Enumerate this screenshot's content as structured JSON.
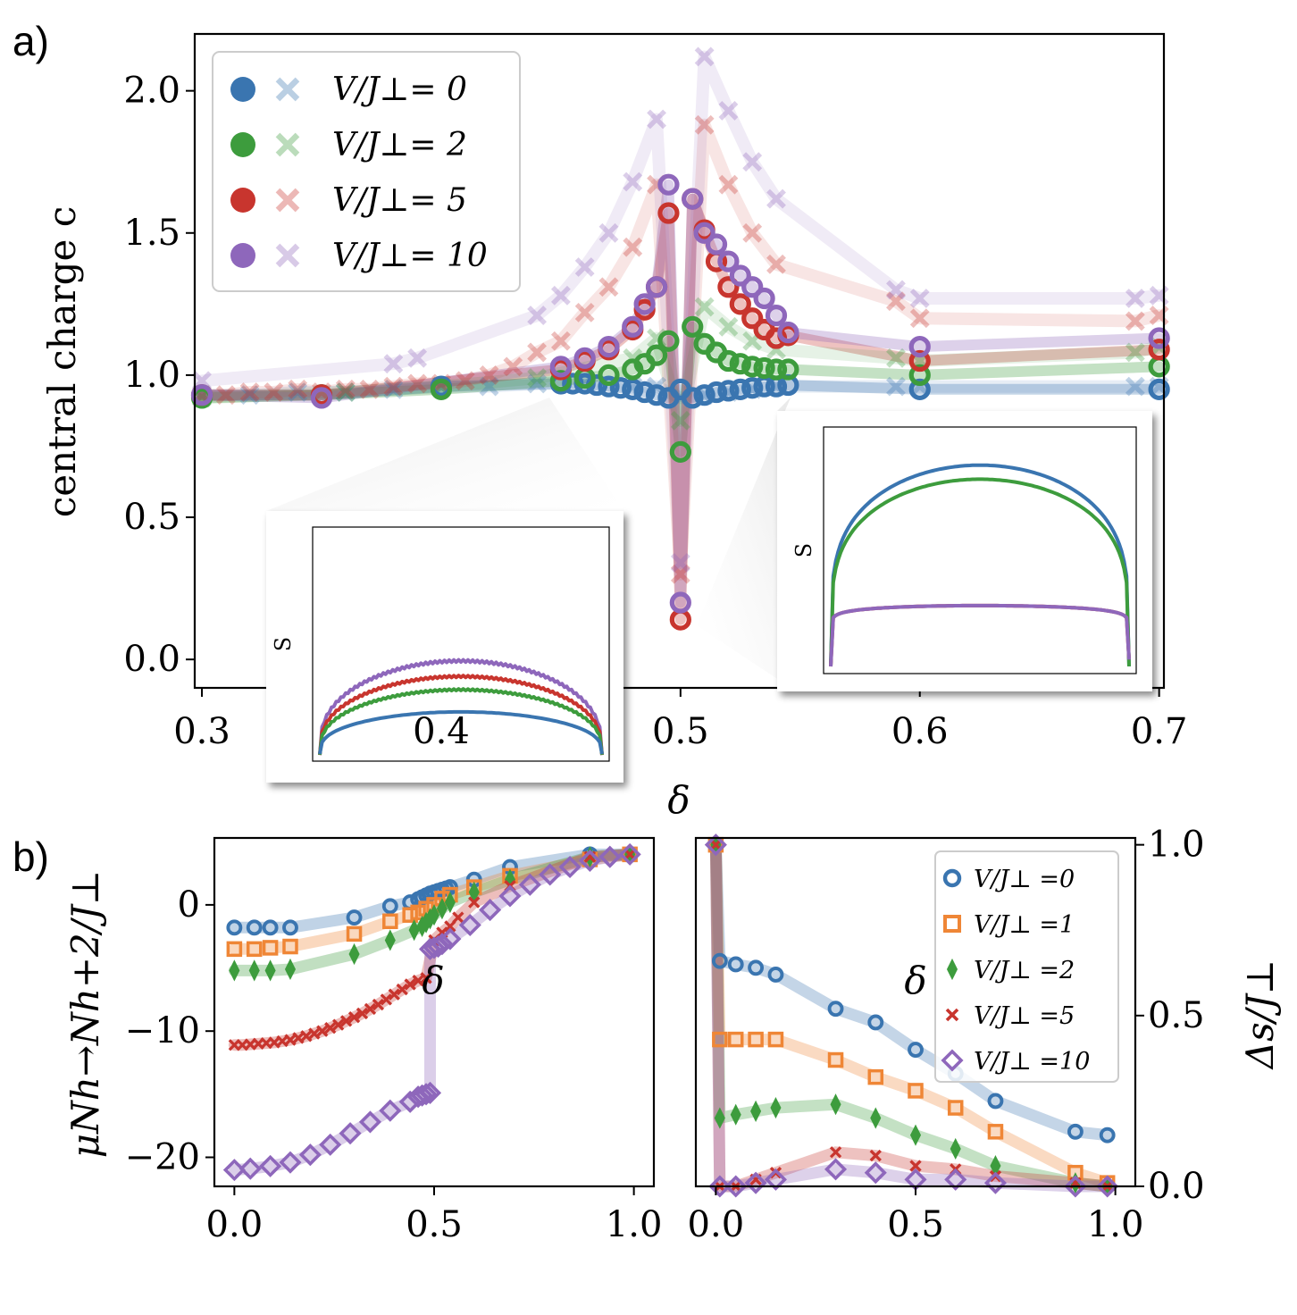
{
  "colors": {
    "blue": "#3a75b0",
    "orange": "#ef8636",
    "green": "#3d9c3d",
    "red": "#c8352e",
    "purple": "#8e67bb"
  },
  "chart_data": [
    {
      "id": "a",
      "panel_label": "a)",
      "type": "scatter",
      "xlabel": "δ",
      "ylabel": "central charge c",
      "xlim": [
        0.297,
        0.702
      ],
      "ylim": [
        -0.1,
        2.2
      ],
      "xticks": [
        {
          "v": 0.3,
          "label": "0.3"
        },
        {
          "v": 0.4,
          "label": "0.4"
        },
        {
          "v": 0.5,
          "label": "0.5"
        },
        {
          "v": 0.6,
          "label": "0.6"
        },
        {
          "v": 0.7,
          "label": "0.7"
        }
      ],
      "yticks": [
        {
          "v": 0.0,
          "label": "0.0"
        },
        {
          "v": 0.5,
          "label": "0.5"
        },
        {
          "v": 1.0,
          "label": "1.0"
        },
        {
          "v": 1.5,
          "label": "1.5"
        },
        {
          "v": 2.0,
          "label": "2.0"
        }
      ],
      "legend": [
        {
          "label": "V/J⊥= 0",
          "color": "blue"
        },
        {
          "label": "V/J⊥= 2",
          "color": "green"
        },
        {
          "label": "V/J⊥= 5",
          "color": "red"
        },
        {
          "label": "V/J⊥= 10",
          "color": "purple"
        }
      ],
      "series": [
        {
          "name": "V/J⊥= 0",
          "color": "blue",
          "marker": "ring",
          "x": [
            0.3,
            0.35,
            0.4,
            0.45,
            0.455,
            0.46,
            0.465,
            0.47,
            0.475,
            0.48,
            0.485,
            0.49,
            0.495,
            0.5,
            0.505,
            0.51,
            0.515,
            0.52,
            0.525,
            0.53,
            0.535,
            0.54,
            0.545,
            0.6,
            0.7
          ],
          "y": [
            0.93,
            0.93,
            0.96,
            0.97,
            0.97,
            0.97,
            0.965,
            0.96,
            0.955,
            0.95,
            0.94,
            0.93,
            0.92,
            0.95,
            0.92,
            0.93,
            0.94,
            0.945,
            0.95,
            0.955,
            0.96,
            0.96,
            0.965,
            0.95,
            0.95
          ]
        },
        {
          "name": "V/J⊥= 0",
          "color": "blue",
          "marker": "cross",
          "x": [
            0.3,
            0.32,
            0.34,
            0.36,
            0.38,
            0.4,
            0.42,
            0.44,
            0.46,
            0.48,
            0.49,
            0.5,
            0.51,
            0.52,
            0.53,
            0.54,
            0.59,
            0.6,
            0.69,
            0.7
          ],
          "y": [
            0.93,
            0.93,
            0.94,
            0.94,
            0.95,
            0.96,
            0.96,
            0.97,
            0.97,
            0.96,
            0.96,
            0.92,
            0.93,
            0.94,
            0.95,
            0.96,
            0.96,
            0.96,
            0.96,
            0.96
          ]
        },
        {
          "name": "V/J⊥= 2",
          "color": "green",
          "marker": "ring",
          "x": [
            0.3,
            0.35,
            0.4,
            0.45,
            0.46,
            0.47,
            0.48,
            0.485,
            0.49,
            0.495,
            0.5,
            0.505,
            0.51,
            0.515,
            0.52,
            0.525,
            0.53,
            0.535,
            0.54,
            0.545,
            0.6,
            0.7
          ],
          "y": [
            0.92,
            0.93,
            0.95,
            0.98,
            0.99,
            1.0,
            1.02,
            1.04,
            1.07,
            1.12,
            0.73,
            1.17,
            1.11,
            1.08,
            1.05,
            1.04,
            1.03,
            1.025,
            1.02,
            1.02,
            1.0,
            1.03
          ]
        },
        {
          "name": "V/J⊥= 2",
          "color": "green",
          "marker": "cross",
          "x": [
            0.3,
            0.36,
            0.4,
            0.44,
            0.48,
            0.49,
            0.5,
            0.51,
            0.52,
            0.53,
            0.54,
            0.59,
            0.6,
            0.69,
            0.7
          ],
          "y": [
            0.92,
            0.94,
            0.96,
            0.99,
            1.06,
            1.13,
            0.84,
            1.24,
            1.17,
            1.12,
            1.09,
            1.06,
            1.05,
            1.08,
            1.1
          ]
        },
        {
          "name": "V/J⊥= 5",
          "color": "red",
          "marker": "ring",
          "x": [
            0.3,
            0.35,
            0.45,
            0.46,
            0.47,
            0.48,
            0.485,
            0.49,
            0.495,
            0.5,
            0.505,
            0.51,
            0.515,
            0.52,
            0.525,
            0.53,
            0.535,
            0.54,
            0.545,
            0.6,
            0.7
          ],
          "y": [
            0.93,
            0.93,
            1.02,
            1.05,
            1.09,
            1.16,
            1.23,
            1.31,
            1.57,
            0.14,
            1.62,
            1.51,
            1.4,
            1.31,
            1.25,
            1.2,
            1.16,
            1.13,
            1.14,
            1.05,
            1.09
          ]
        },
        {
          "name": "V/J⊥= 5",
          "color": "red",
          "marker": "cross",
          "x": [
            0.3,
            0.31,
            0.32,
            0.33,
            0.34,
            0.35,
            0.36,
            0.37,
            0.38,
            0.39,
            0.4,
            0.41,
            0.42,
            0.43,
            0.44,
            0.45,
            0.46,
            0.47,
            0.48,
            0.49,
            0.5,
            0.51,
            0.52,
            0.53,
            0.54,
            0.59,
            0.6,
            0.69,
            0.7
          ],
          "y": [
            0.93,
            0.93,
            0.94,
            0.94,
            0.95,
            0.94,
            0.95,
            0.95,
            0.96,
            0.97,
            0.97,
            0.98,
            1.0,
            1.03,
            1.08,
            1.12,
            1.22,
            1.31,
            1.45,
            1.67,
            0.3,
            1.88,
            1.67,
            1.5,
            1.39,
            1.26,
            1.2,
            1.19,
            1.21
          ]
        },
        {
          "name": "V/J⊥= 10",
          "color": "purple",
          "marker": "ring",
          "x": [
            0.3,
            0.35,
            0.45,
            0.46,
            0.47,
            0.48,
            0.485,
            0.49,
            0.495,
            0.5,
            0.505,
            0.51,
            0.515,
            0.52,
            0.525,
            0.53,
            0.535,
            0.54,
            0.545,
            0.6,
            0.7
          ],
          "y": [
            0.93,
            0.92,
            1.03,
            1.06,
            1.1,
            1.17,
            1.25,
            1.31,
            1.67,
            0.2,
            1.62,
            1.5,
            1.46,
            1.4,
            1.35,
            1.31,
            1.27,
            1.21,
            1.15,
            1.1,
            1.13
          ]
        },
        {
          "name": "V/J⊥= 10",
          "color": "purple",
          "marker": "cross",
          "x": [
            0.3,
            0.38,
            0.39,
            0.44,
            0.45,
            0.46,
            0.47,
            0.48,
            0.49,
            0.5,
            0.51,
            0.52,
            0.53,
            0.54,
            0.59,
            0.6,
            0.69,
            0.7
          ],
          "y": [
            0.98,
            1.04,
            1.06,
            1.21,
            1.28,
            1.38,
            1.5,
            1.68,
            1.9,
            0.34,
            2.12,
            1.93,
            1.75,
            1.62,
            1.3,
            1.27,
            1.27,
            1.28
          ]
        }
      ],
      "insets": [
        {
          "ylabel": "S",
          "curves": [
            {
              "color": "purple",
              "level": 0.42
            },
            {
              "color": "red",
              "level": 0.35
            },
            {
              "color": "green",
              "level": 0.29
            },
            {
              "color": "blue",
              "level": 0.19
            }
          ]
        },
        {
          "ylabel": "S",
          "curves": [
            {
              "color": "blue",
              "level": 0.86
            },
            {
              "color": "green",
              "level": 0.8
            },
            {
              "color": "red",
              "level": 0.26
            },
            {
              "color": "purple",
              "level": 0.26
            }
          ]
        }
      ]
    },
    {
      "id": "b-left",
      "panel_label": "b)",
      "type": "line",
      "xlabel": "δ",
      "ylabel": "μNh→Nh+2/J⊥",
      "xlim": [
        -0.05,
        1.05
      ],
      "ylim": [
        -22.3,
        5.3
      ],
      "xticks": [
        {
          "v": 0.0,
          "label": "0.0"
        },
        {
          "v": 0.5,
          "label": "0.5"
        },
        {
          "v": 1.0,
          "label": "1.0"
        }
      ],
      "yticks": [
        {
          "v": 0,
          "label": "0"
        },
        {
          "v": -10,
          "label": "−10"
        },
        {
          "v": -20,
          "label": "−20"
        }
      ],
      "series": [
        {
          "name": "V/J⊥ =0",
          "color": "blue",
          "marker": "ring",
          "x": [
            0,
            0.05,
            0.09,
            0.14,
            0.3,
            0.39,
            0.44,
            0.46,
            0.47,
            0.48,
            0.49,
            0.5,
            0.51,
            0.52,
            0.53,
            0.54,
            0.6,
            0.69,
            0.89,
            0.99
          ],
          "y": [
            -1.8,
            -1.8,
            -1.8,
            -1.8,
            -1.0,
            -0.1,
            0.2,
            0.45,
            0.6,
            0.75,
            0.9,
            1.0,
            1.1,
            1.2,
            1.3,
            1.4,
            2.0,
            3.0,
            4.0,
            4.0
          ]
        },
        {
          "name": "V/J⊥ =1",
          "color": "orange",
          "marker": "square",
          "x": [
            0,
            0.05,
            0.09,
            0.14,
            0.3,
            0.39,
            0.44,
            0.46,
            0.48,
            0.5,
            0.52,
            0.54,
            0.6,
            0.69,
            0.89,
            0.99
          ],
          "y": [
            -3.5,
            -3.5,
            -3.4,
            -3.3,
            -2.3,
            -1.3,
            -0.8,
            -0.6,
            -0.3,
            0.0,
            0.5,
            0.8,
            1.4,
            2.3,
            3.6,
            4.0
          ]
        },
        {
          "name": "V/J⊥ =2",
          "color": "green",
          "marker": "diamond-thin",
          "x": [
            0,
            0.05,
            0.09,
            0.14,
            0.3,
            0.39,
            0.45,
            0.47,
            0.48,
            0.49,
            0.5,
            0.52,
            0.54,
            0.6,
            0.69,
            0.89,
            0.99
          ],
          "y": [
            -5.2,
            -5.2,
            -5.2,
            -5.1,
            -3.9,
            -2.8,
            -2.0,
            -1.7,
            -1.4,
            -1.1,
            -0.8,
            -0.3,
            0.2,
            1.0,
            2.0,
            3.8,
            4.0
          ]
        },
        {
          "name": "V/J⊥ =5",
          "color": "red",
          "marker": "x-small",
          "x": [
            0,
            0.02,
            0.04,
            0.06,
            0.08,
            0.1,
            0.12,
            0.14,
            0.16,
            0.18,
            0.2,
            0.22,
            0.24,
            0.26,
            0.28,
            0.3,
            0.32,
            0.34,
            0.36,
            0.38,
            0.4,
            0.42,
            0.44,
            0.46,
            0.48,
            0.5,
            0.52,
            0.54,
            0.56,
            0.6,
            0.69,
            0.89,
            0.99
          ],
          "y": [
            -11.1,
            -11.1,
            -11.05,
            -11.0,
            -10.95,
            -10.9,
            -10.8,
            -10.7,
            -10.55,
            -10.4,
            -10.2,
            -10.0,
            -9.75,
            -9.5,
            -9.2,
            -8.9,
            -8.6,
            -8.25,
            -7.9,
            -7.5,
            -7.1,
            -6.7,
            -6.3,
            -6.0,
            -5.8,
            -2.8,
            -2.2,
            -1.7,
            -1.0,
            0.2,
            1.5,
            3.8,
            4.0
          ]
        },
        {
          "name": "V/J⊥ =10",
          "color": "purple",
          "marker": "diamond",
          "x": [
            0,
            0.04,
            0.09,
            0.14,
            0.19,
            0.24,
            0.29,
            0.34,
            0.39,
            0.44,
            0.46,
            0.47,
            0.48,
            0.49,
            0.49,
            0.5,
            0.51,
            0.52,
            0.54,
            0.59,
            0.64,
            0.69,
            0.74,
            0.79,
            0.84,
            0.89,
            0.94,
            0.99
          ],
          "y": [
            -21.0,
            -20.9,
            -20.7,
            -20.4,
            -19.8,
            -19.0,
            -18.1,
            -17.2,
            -16.3,
            -15.6,
            -15.2,
            -15.1,
            -15.0,
            -14.9,
            -3.5,
            -3.4,
            -3.3,
            -3.1,
            -2.7,
            -1.6,
            -0.4,
            0.7,
            1.6,
            2.4,
            3.0,
            3.5,
            3.8,
            4.0
          ]
        }
      ]
    },
    {
      "id": "b-right",
      "type": "line",
      "xlabel": "δ",
      "ylabel": "Δs/J⊥",
      "xlim": [
        -0.05,
        1.05
      ],
      "ylim": [
        0.0,
        1.02
      ],
      "xticks": [
        {
          "v": 0.0,
          "label": "0.0"
        },
        {
          "v": 0.5,
          "label": "0.5"
        },
        {
          "v": 1.0,
          "label": "1.0"
        }
      ],
      "yticks": [
        {
          "v": 0.0,
          "label": "0.0"
        },
        {
          "v": 0.5,
          "label": "0.5"
        },
        {
          "v": 1.0,
          "label": "1.0"
        }
      ],
      "legend": [
        {
          "label": "V/J⊥ =0",
          "color": "blue",
          "marker": "ring"
        },
        {
          "label": "V/J⊥ =1",
          "color": "orange",
          "marker": "square"
        },
        {
          "label": "V/J⊥ =2",
          "color": "green",
          "marker": "diamond-thin"
        },
        {
          "label": "V/J⊥ =5",
          "color": "red",
          "marker": "x-small"
        },
        {
          "label": "V/J⊥ =10",
          "color": "purple",
          "marker": "diamond"
        }
      ],
      "series": [
        {
          "name": "V/J⊥ =0",
          "color": "blue",
          "marker": "ring",
          "x": [
            0,
            0.01,
            0.05,
            0.1,
            0.15,
            0.3,
            0.4,
            0.5,
            0.6,
            0.7,
            0.9,
            0.98
          ],
          "y": [
            1.0,
            0.66,
            0.65,
            0.64,
            0.62,
            0.52,
            0.48,
            0.4,
            0.33,
            0.25,
            0.16,
            0.15
          ]
        },
        {
          "name": "V/J⊥ =1",
          "color": "orange",
          "marker": "square",
          "x": [
            0,
            0.01,
            0.05,
            0.1,
            0.15,
            0.3,
            0.4,
            0.5,
            0.6,
            0.7,
            0.9,
            0.98
          ],
          "y": [
            1.0,
            0.43,
            0.43,
            0.43,
            0.43,
            0.37,
            0.32,
            0.28,
            0.23,
            0.16,
            0.04,
            0.01
          ]
        },
        {
          "name": "V/J⊥ =2",
          "color": "green",
          "marker": "diamond-thin",
          "x": [
            0,
            0.01,
            0.05,
            0.1,
            0.15,
            0.3,
            0.4,
            0.5,
            0.6,
            0.7,
            0.9,
            0.98
          ],
          "y": [
            1.0,
            0.2,
            0.21,
            0.22,
            0.23,
            0.24,
            0.2,
            0.15,
            0.11,
            0.06,
            0.01,
            0.0
          ]
        },
        {
          "name": "V/J⊥ =5",
          "color": "red",
          "marker": "x-small",
          "x": [
            0,
            0.01,
            0.05,
            0.1,
            0.15,
            0.3,
            0.4,
            0.5,
            0.6,
            0.7,
            0.9,
            0.98
          ],
          "y": [
            1.0,
            0.0,
            0.0,
            0.02,
            0.04,
            0.1,
            0.09,
            0.06,
            0.05,
            0.03,
            0.01,
            0.0
          ]
        },
        {
          "name": "V/J⊥ =10",
          "color": "purple",
          "marker": "diamond",
          "x": [
            0,
            0.01,
            0.05,
            0.1,
            0.15,
            0.3,
            0.4,
            0.5,
            0.6,
            0.7,
            0.9,
            0.98
          ],
          "y": [
            1.0,
            0.0,
            0.0,
            0.01,
            0.02,
            0.05,
            0.04,
            0.02,
            0.02,
            0.01,
            0.0,
            0.0
          ]
        }
      ]
    }
  ]
}
